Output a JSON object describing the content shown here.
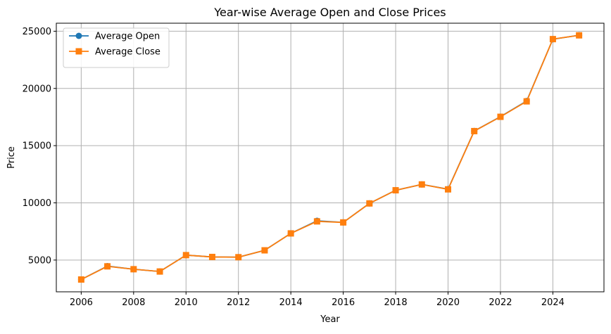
{
  "chart_data": {
    "type": "line",
    "title": "Year-wise Average Open and Close Prices",
    "xlabel": "Year",
    "ylabel": "Price",
    "x": [
      2006,
      2007,
      2008,
      2009,
      2010,
      2011,
      2012,
      2013,
      2014,
      2015,
      2016,
      2017,
      2018,
      2019,
      2020,
      2021,
      2022,
      2023,
      2024,
      2025
    ],
    "xticks": [
      2006,
      2008,
      2010,
      2012,
      2014,
      2016,
      2018,
      2020,
      2022,
      2024
    ],
    "yticks": [
      5000,
      10000,
      15000,
      20000,
      25000
    ],
    "xlim": [
      2005.05,
      2025.95
    ],
    "ylim": [
      2225,
      25700
    ],
    "grid": true,
    "legend": "top-left",
    "series": [
      {
        "name": "Average Open",
        "color": "#1f77b4",
        "marker": "circle",
        "values": [
          3300,
          4470,
          4200,
          4000,
          5430,
          5270,
          5250,
          5850,
          7330,
          8430,
          8290,
          9950,
          11100,
          11610,
          11200,
          16280,
          17530,
          18900,
          24300,
          24650
        ]
      },
      {
        "name": "Average Close",
        "color": "#ff7f0e",
        "marker": "square",
        "values": [
          3300,
          4450,
          4200,
          4000,
          5430,
          5270,
          5250,
          5850,
          7330,
          8380,
          8290,
          9950,
          11100,
          11610,
          11180,
          16270,
          17520,
          18870,
          24310,
          24640
        ]
      }
    ]
  }
}
